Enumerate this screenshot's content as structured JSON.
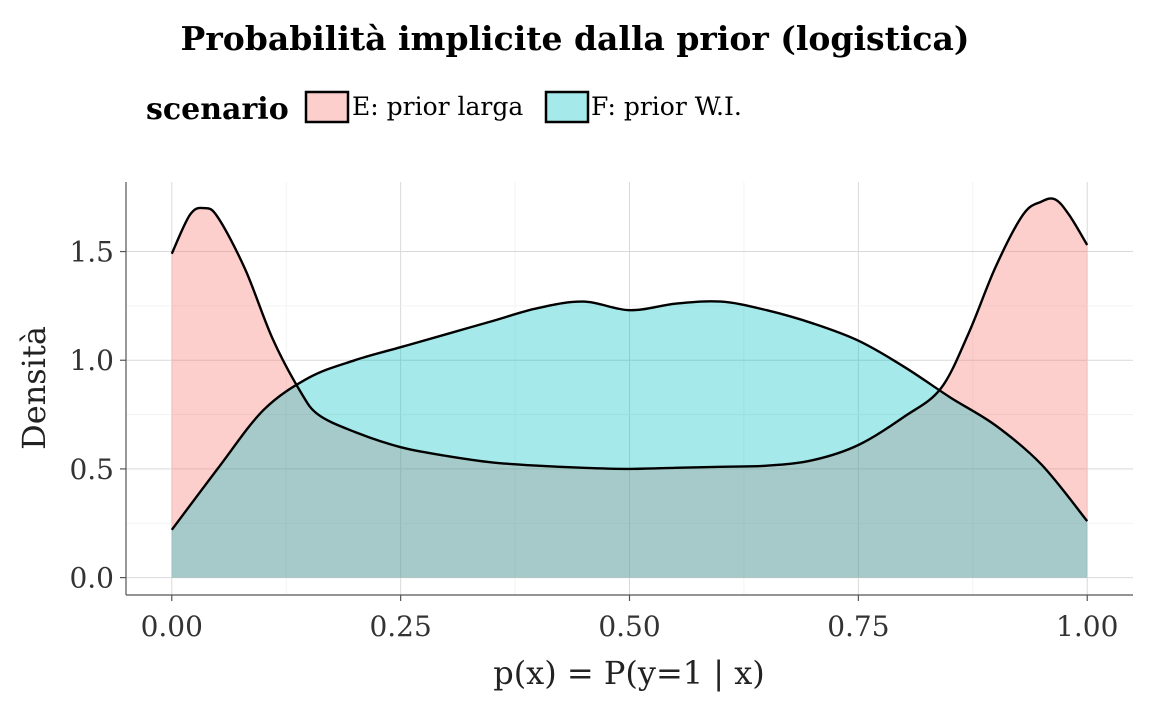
{
  "chart_data": {
    "type": "area",
    "title": "Probabilità implicite dalla prior (logistica)",
    "xlabel": "p(x) = P(y=1 | x)",
    "ylabel": "Densità",
    "xlim": [
      -0.05,
      1.05
    ],
    "ylim": [
      -0.08,
      1.82
    ],
    "x_ticks": [
      0.0,
      0.25,
      0.5,
      0.75,
      1.0
    ],
    "x_tick_labels": [
      "0.00",
      "0.25",
      "0.50",
      "0.75",
      "1.00"
    ],
    "y_ticks": [
      0.0,
      0.5,
      1.0,
      1.5
    ],
    "y_tick_labels": [
      "0.0",
      "0.5",
      "1.0",
      "1.5"
    ],
    "grid": true,
    "legend": {
      "title": "scenario",
      "placement": "top",
      "entries": [
        "E: prior larga",
        "F: prior W.I."
      ]
    },
    "series": [
      {
        "name": "E: prior larga",
        "fill": "#f8766d",
        "x": [
          0.0,
          0.02,
          0.035,
          0.05,
          0.08,
          0.11,
          0.14,
          0.16,
          0.2,
          0.25,
          0.3,
          0.35,
          0.4,
          0.45,
          0.5,
          0.55,
          0.6,
          0.65,
          0.7,
          0.75,
          0.8,
          0.84,
          0.87,
          0.9,
          0.93,
          0.95,
          0.965,
          0.98,
          1.0
        ],
        "y": [
          1.49,
          1.67,
          1.7,
          1.66,
          1.42,
          1.1,
          0.86,
          0.75,
          0.67,
          0.6,
          0.56,
          0.53,
          0.515,
          0.505,
          0.5,
          0.505,
          0.51,
          0.515,
          0.54,
          0.61,
          0.74,
          0.87,
          1.12,
          1.43,
          1.67,
          1.73,
          1.74,
          1.67,
          1.53
        ]
      },
      {
        "name": "F: prior W.I.",
        "fill": "#00bfc4",
        "x": [
          0.0,
          0.05,
          0.1,
          0.15,
          0.2,
          0.25,
          0.3,
          0.35,
          0.4,
          0.45,
          0.5,
          0.55,
          0.6,
          0.65,
          0.7,
          0.75,
          0.8,
          0.85,
          0.9,
          0.95,
          1.0
        ],
        "y": [
          0.22,
          0.5,
          0.77,
          0.92,
          1.0,
          1.06,
          1.12,
          1.18,
          1.24,
          1.27,
          1.23,
          1.26,
          1.27,
          1.23,
          1.17,
          1.09,
          0.97,
          0.83,
          0.7,
          0.52,
          0.26
        ]
      }
    ]
  }
}
